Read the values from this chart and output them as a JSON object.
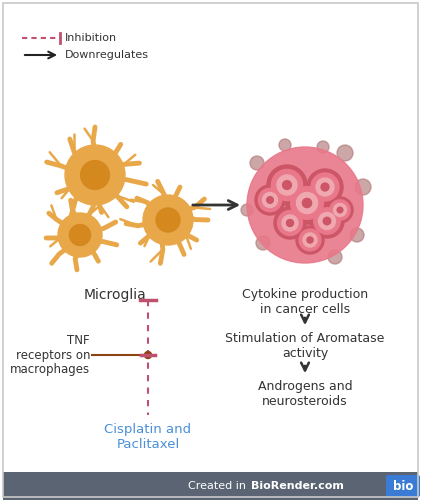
{
  "bg_color": "#ffffff",
  "border_color": "#c8c8c8",
  "legend_inhibition_color": "#c0516e",
  "legend_downregulates_color": "#222222",
  "microglia_body_color": "#e8a84a",
  "microglia_nucleus_color": "#d4881e",
  "cancer_cluster_outer": "#e8788a",
  "cancer_cell_inner_color": "#f0a8b0",
  "cancer_cell_border": "#cc5566",
  "cancer_scatter_color": "#b07878",
  "arrow_color": "#333333",
  "inhibition_line_color": "#c0516e",
  "tnf_dot_color": "#8B4513",
  "cisplatin_color": "#4a90d9",
  "text_color": "#333333",
  "footer_bg": "#5a6472",
  "footer_text_color": "#ffffff",
  "bio_box_color": "#3a7bd5",
  "text_labels": {
    "microglia": "Microglia",
    "cytokine": "Cytokine production\nin cancer cells",
    "stimulation": "Stimulation of Aromatase\nactivity",
    "androgens": "Androgens and\nneurosteroids",
    "tnf": "TNF\nreceptors on\nmacrophages",
    "cisplatin": "Cisplatin and\nPaclitaxel",
    "inhibition_legend": "Inhibition",
    "downregulates_legend": "Downregulates",
    "biorender_pre": "Created in ",
    "biorender_bold": "BioRender.com",
    "bio_box": "bio"
  }
}
